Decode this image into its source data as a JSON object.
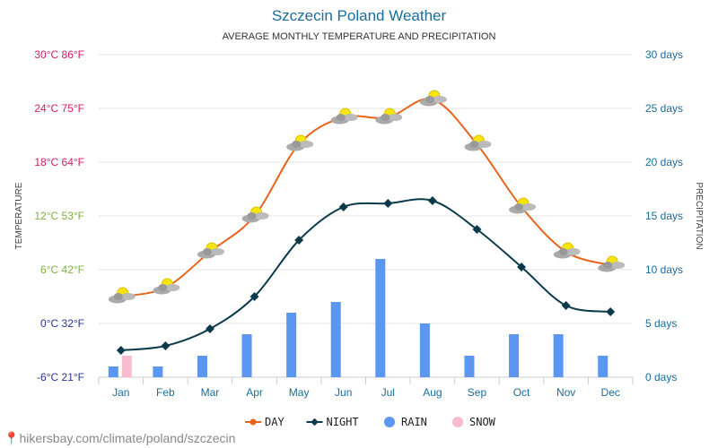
{
  "chart_data": {
    "type": "line+bar",
    "title": "Szczecin Poland Weather",
    "subtitle": "AVERAGE MONTHLY TEMPERATURE AND PRECIPITATION",
    "ylabel_left": "TEMPERATURE",
    "ylabel_right": "PRECIPITATION",
    "categories": [
      "Jan",
      "Feb",
      "Mar",
      "Apr",
      "May",
      "Jun",
      "Jul",
      "Aug",
      "Sep",
      "Oct",
      "Nov",
      "Dec"
    ],
    "ylim_left": [
      -6,
      30
    ],
    "ylim_right": [
      0,
      30
    ],
    "left_ticks": [
      {
        "v": 30,
        "label": "30°C 86°F",
        "color": "#d81b60"
      },
      {
        "v": 24,
        "label": "24°C 75°F",
        "color": "#d81b60"
      },
      {
        "v": 18,
        "label": "18°C 64°F",
        "color": "#d81b60"
      },
      {
        "v": 12,
        "label": "12°C 53°F",
        "color": "#7cb342"
      },
      {
        "v": 6,
        "label": "6°C 42°F",
        "color": "#7cb342"
      },
      {
        "v": 0,
        "label": "0°C 32°F",
        "color": "#283593"
      },
      {
        "v": -6,
        "label": "-6°C 21°F",
        "color": "#283593"
      }
    ],
    "right_ticks": [
      {
        "v": 30,
        "label": "30 days"
      },
      {
        "v": 25,
        "label": "25 days"
      },
      {
        "v": 20,
        "label": "20 days"
      },
      {
        "v": 15,
        "label": "15 days"
      },
      {
        "v": 10,
        "label": "10 days"
      },
      {
        "v": 5,
        "label": "5 days"
      },
      {
        "v": 0,
        "label": "0 days"
      }
    ],
    "series": [
      {
        "name": "DAY",
        "type": "line",
        "color": "#e8641b",
        "values": [
          3,
          4,
          8,
          12,
          20,
          23,
          23,
          25,
          20,
          13,
          8,
          6.5
        ]
      },
      {
        "name": "NIGHT",
        "type": "line",
        "color": "#0b3a4a",
        "values": [
          -3,
          -2.5,
          -0.6,
          3,
          9.3,
          13,
          13.4,
          13.7,
          10.5,
          6.3,
          2,
          1.3
        ]
      },
      {
        "name": "RAIN",
        "type": "bar",
        "color": "#5b97f0",
        "values": [
          1,
          1,
          2,
          4,
          6,
          7,
          11,
          5,
          2,
          4,
          4,
          2
        ]
      },
      {
        "name": "SNOW",
        "type": "bar",
        "color": "#f8bbd0",
        "values": [
          2,
          0,
          0,
          0,
          0,
          0,
          0,
          0,
          0,
          0,
          0,
          0
        ]
      }
    ],
    "grid": true,
    "legend_placement": "bottom",
    "day_icons": "sun-behind-cloud"
  },
  "footer": {
    "source": "hikersbay.com/climate/poland/szczecin"
  }
}
